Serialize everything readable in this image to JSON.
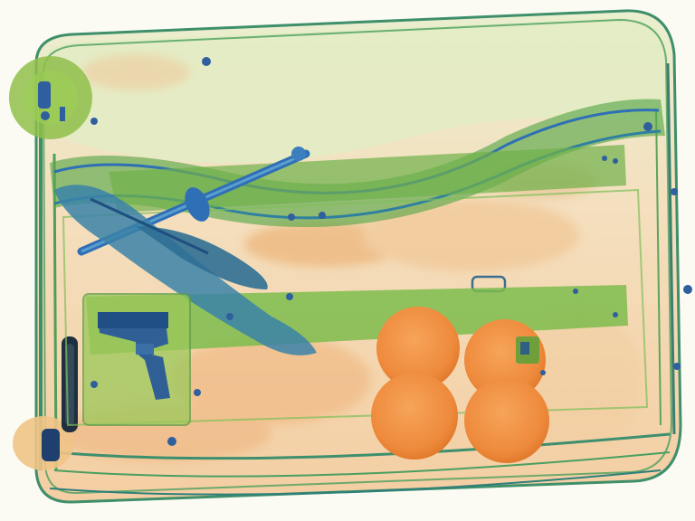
{
  "image": {
    "kind": "x-ray baggage scan",
    "colors": {
      "background": "#fbfbf3",
      "organic_orange": "#f0a25a",
      "organic_light": "#f6cf9e",
      "inorganic_green": "#8fc04a",
      "green_pale": "#d9e6b0",
      "metal_blue": "#2f6fb5",
      "metal_dark": "#1f3f6f",
      "fruit": "#ee8a3c"
    },
    "objects": [
      {
        "id": "suitcase",
        "label": "suitcase"
      },
      {
        "id": "handgun",
        "label": "handgun"
      },
      {
        "id": "knife",
        "label": "knife"
      },
      {
        "id": "rod",
        "label": "rod"
      },
      {
        "id": "oranges",
        "label": "round fruit",
        "count": 4
      },
      {
        "id": "wheel",
        "label": "wheel"
      },
      {
        "id": "handle",
        "label": "handle"
      }
    ]
  }
}
